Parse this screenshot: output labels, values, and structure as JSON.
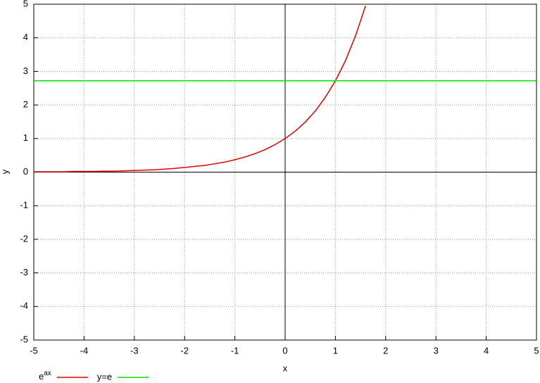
{
  "chart_data": {
    "type": "line",
    "xlabel": "x",
    "ylabel": "y",
    "xlim": [
      -5,
      5
    ],
    "ylim": [
      -5,
      5
    ],
    "xticks": [
      -5,
      -4,
      -3,
      -2,
      -1,
      0,
      1,
      2,
      3,
      4,
      5
    ],
    "yticks": [
      -5,
      -4,
      -3,
      -2,
      -1,
      0,
      1,
      2,
      3,
      4,
      5
    ],
    "grid": true,
    "legend": "bottom",
    "series": [
      {
        "name": "e^ax",
        "color": "#e00000",
        "x": [
          -5,
          -4.8,
          -4.6,
          -4.4,
          -4.2,
          -4,
          -3.8,
          -3.6,
          -3.4,
          -3.2,
          -3,
          -2.8,
          -2.6,
          -2.4,
          -2.2,
          -2,
          -1.8,
          -1.6,
          -1.4,
          -1.2,
          -1,
          -0.8,
          -0.6,
          -0.4,
          -0.2,
          0,
          0.2,
          0.4,
          0.6,
          0.8,
          1,
          1.2,
          1.4,
          1.6
        ],
        "values": [
          0.01,
          0.01,
          0.01,
          0.01,
          0.02,
          0.02,
          0.02,
          0.03,
          0.03,
          0.04,
          0.05,
          0.06,
          0.07,
          0.09,
          0.11,
          0.14,
          0.17,
          0.2,
          0.25,
          0.3,
          0.37,
          0.45,
          0.55,
          0.67,
          0.82,
          1,
          1.22,
          1.49,
          1.82,
          2.23,
          2.72,
          3.32,
          4.06,
          4.95
        ]
      },
      {
        "name": "y=e",
        "color": "#00e000",
        "x": [
          -5,
          5
        ],
        "values": [
          2.72,
          2.72
        ]
      }
    ]
  }
}
